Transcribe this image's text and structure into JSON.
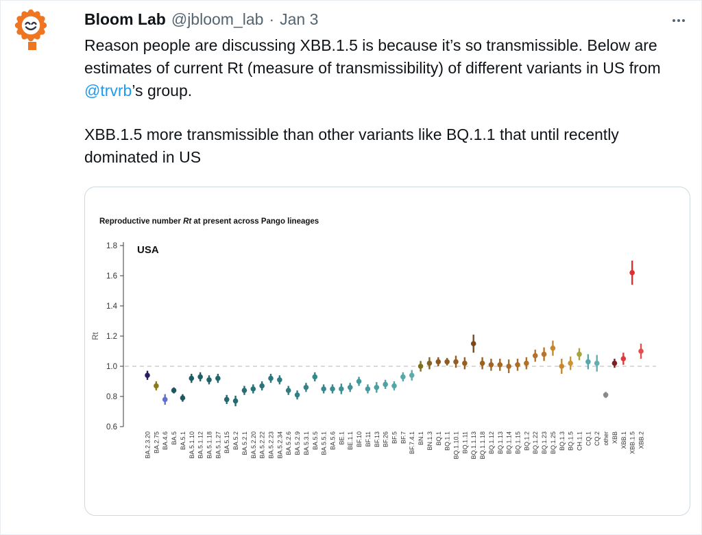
{
  "tweet": {
    "author": "Bloom Lab",
    "handle": "@jbloom_lab",
    "dot": "·",
    "date": "Jan 3",
    "body1_pre": "Reason people are discussing XBB.1.5 is because it’s so transmissible. Below are estimates of current Rt (measure of transmissibility) of different variants in US from ",
    "mention": "@trvrb",
    "body1_post": "’s group.",
    "body2": "XBB.1.5 more transmissible than other variants like BQ.1.1 that until recently dominated in US"
  },
  "icons": {
    "avatar": "bloom-lab-sun-smiley-logo",
    "more": "three-dots-horizontal"
  },
  "colors": {
    "link_blue": "#1d9bf0",
    "text_primary": "#0f1419",
    "text_secondary": "#536471",
    "card_border": "#cfd9de",
    "logo_orange": "#ee7623",
    "refline_gray": "#c4c4c4"
  },
  "chart_data": {
    "type": "scatter",
    "title": "Reproductive number Rt at present across Pango lineages",
    "title_pre": "Reproductive number ",
    "title_rt": "Rt",
    "title_post": " at present across Pango lineages",
    "region": "USA",
    "ylabel": "Rt",
    "ylim": [
      0.6,
      1.8
    ],
    "yticks": [
      0.6,
      0.8,
      1.0,
      1.2,
      1.4,
      1.6,
      1.8
    ],
    "reference_line": 1.0,
    "error_bars": true,
    "grid": false,
    "legend": false,
    "points": [
      {
        "label": "BA.2.3.20",
        "rt": 0.94,
        "lo": 0.91,
        "hi": 0.97,
        "color": "#2c1e5e"
      },
      {
        "label": "BA.2.75",
        "rt": 0.87,
        "lo": 0.84,
        "hi": 0.9,
        "color": "#8c7a1d"
      },
      {
        "label": "BA.4.6",
        "rt": 0.78,
        "lo": 0.745,
        "hi": 0.815,
        "color": "#5f6fd4"
      },
      {
        "label": "BA.5",
        "rt": 0.84,
        "lo": 0.82,
        "hi": 0.86,
        "color": "#1d565c"
      },
      {
        "label": "BA.5.1",
        "rt": 0.79,
        "lo": 0.765,
        "hi": 0.815,
        "color": "#1e595f"
      },
      {
        "label": "BA.5.1.10",
        "rt": 0.92,
        "lo": 0.89,
        "hi": 0.95,
        "color": "#1f5c62"
      },
      {
        "label": "BA.5.1.12",
        "rt": 0.93,
        "lo": 0.9,
        "hi": 0.96,
        "color": "#205f65"
      },
      {
        "label": "BA.5.1.18",
        "rt": 0.91,
        "lo": 0.88,
        "hi": 0.94,
        "color": "#216268"
      },
      {
        "label": "BA.5.1.27",
        "rt": 0.92,
        "lo": 0.89,
        "hi": 0.95,
        "color": "#22656b"
      },
      {
        "label": "BA.5.15",
        "rt": 0.78,
        "lo": 0.75,
        "hi": 0.81,
        "color": "#23686e"
      },
      {
        "label": "BA.5.2",
        "rt": 0.77,
        "lo": 0.735,
        "hi": 0.805,
        "color": "#246b71"
      },
      {
        "label": "BA.5.2.1",
        "rt": 0.84,
        "lo": 0.81,
        "hi": 0.87,
        "color": "#266e74"
      },
      {
        "label": "BA.5.2.20",
        "rt": 0.85,
        "lo": 0.82,
        "hi": 0.88,
        "color": "#277177"
      },
      {
        "label": "BA.5.2.22",
        "rt": 0.87,
        "lo": 0.84,
        "hi": 0.9,
        "color": "#29747a"
      },
      {
        "label": "BA.5.2.23",
        "rt": 0.92,
        "lo": 0.89,
        "hi": 0.95,
        "color": "#2b777d"
      },
      {
        "label": "BA.5.2.34",
        "rt": 0.91,
        "lo": 0.88,
        "hi": 0.94,
        "color": "#2d7a80"
      },
      {
        "label": "BA.5.2.6",
        "rt": 0.84,
        "lo": 0.81,
        "hi": 0.87,
        "color": "#2f7d83"
      },
      {
        "label": "BA.5.2.9",
        "rt": 0.81,
        "lo": 0.78,
        "hi": 0.84,
        "color": "#318086"
      },
      {
        "label": "BA.5.3.1",
        "rt": 0.86,
        "lo": 0.83,
        "hi": 0.89,
        "color": "#338389"
      },
      {
        "label": "BA.5.5",
        "rt": 0.93,
        "lo": 0.9,
        "hi": 0.96,
        "color": "#36868c"
      },
      {
        "label": "BA.5.5.1",
        "rt": 0.85,
        "lo": 0.82,
        "hi": 0.88,
        "color": "#38898f"
      },
      {
        "label": "BA.5.6",
        "rt": 0.85,
        "lo": 0.82,
        "hi": 0.88,
        "color": "#3b8c92"
      },
      {
        "label": "BE.1",
        "rt": 0.85,
        "lo": 0.815,
        "hi": 0.885,
        "color": "#3e9095"
      },
      {
        "label": "BE.1.1",
        "rt": 0.86,
        "lo": 0.83,
        "hi": 0.89,
        "color": "#419398"
      },
      {
        "label": "BF.10",
        "rt": 0.9,
        "lo": 0.87,
        "hi": 0.93,
        "color": "#45979b"
      },
      {
        "label": "BF.11",
        "rt": 0.85,
        "lo": 0.82,
        "hi": 0.88,
        "color": "#489a9e"
      },
      {
        "label": "BF.13",
        "rt": 0.86,
        "lo": 0.825,
        "hi": 0.895,
        "color": "#4c9ea1"
      },
      {
        "label": "BF.26",
        "rt": 0.88,
        "lo": 0.85,
        "hi": 0.91,
        "color": "#50a1a4"
      },
      {
        "label": "BF.5",
        "rt": 0.87,
        "lo": 0.84,
        "hi": 0.9,
        "color": "#54a5a7"
      },
      {
        "label": "BF.7",
        "rt": 0.93,
        "lo": 0.9,
        "hi": 0.96,
        "color": "#58a8aa"
      },
      {
        "label": "BF.7.4.1",
        "rt": 0.94,
        "lo": 0.905,
        "hi": 0.975,
        "color": "#5cacad"
      },
      {
        "label": "BN.1",
        "rt": 1.0,
        "lo": 0.965,
        "hi": 1.035,
        "color": "#7e6f1e"
      },
      {
        "label": "BN.1.3",
        "rt": 1.02,
        "lo": 0.98,
        "hi": 1.06,
        "color": "#846420"
      },
      {
        "label": "BQ.1",
        "rt": 1.03,
        "lo": 1.0,
        "hi": 1.06,
        "color": "#885a22"
      },
      {
        "label": "BQ.1.1",
        "rt": 1.03,
        "lo": 1.005,
        "hi": 1.055,
        "color": "#8d5c23"
      },
      {
        "label": "BQ.1.10.1",
        "rt": 1.03,
        "lo": 0.99,
        "hi": 1.07,
        "color": "#915e24"
      },
      {
        "label": "BQ.1.11",
        "rt": 1.02,
        "lo": 0.98,
        "hi": 1.06,
        "color": "#956025"
      },
      {
        "label": "BQ.1.1.13",
        "rt": 1.15,
        "lo": 1.09,
        "hi": 1.21,
        "color": "#7a4a1c"
      },
      {
        "label": "BQ.1.1.18",
        "rt": 1.02,
        "lo": 0.98,
        "hi": 1.06,
        "color": "#9a6326"
      },
      {
        "label": "BQ.1.12",
        "rt": 1.01,
        "lo": 0.97,
        "hi": 1.05,
        "color": "#9e6527"
      },
      {
        "label": "BQ.1.13",
        "rt": 1.01,
        "lo": 0.97,
        "hi": 1.05,
        "color": "#a36828"
      },
      {
        "label": "BQ.1.14",
        "rt": 1.0,
        "lo": 0.955,
        "hi": 1.045,
        "color": "#a76a29"
      },
      {
        "label": "BQ.1.15",
        "rt": 1.01,
        "lo": 0.97,
        "hi": 1.05,
        "color": "#ac6d2a"
      },
      {
        "label": "BQ.1.2",
        "rt": 1.02,
        "lo": 0.98,
        "hi": 1.06,
        "color": "#b0702b"
      },
      {
        "label": "BQ.1.22",
        "rt": 1.07,
        "lo": 1.03,
        "hi": 1.11,
        "color": "#b5722c"
      },
      {
        "label": "BQ.1.23",
        "rt": 1.08,
        "lo": 1.035,
        "hi": 1.125,
        "color": "#b9752d"
      },
      {
        "label": "BQ.1.25",
        "rt": 1.12,
        "lo": 1.07,
        "hi": 1.17,
        "color": "#c8862d"
      },
      {
        "label": "BQ.1.3",
        "rt": 1.0,
        "lo": 0.95,
        "hi": 1.05,
        "color": "#c28a2f"
      },
      {
        "label": "BQ.1.5",
        "rt": 1.02,
        "lo": 0.975,
        "hi": 1.065,
        "color": "#cc9433"
      },
      {
        "label": "CH.1.1",
        "rt": 1.08,
        "lo": 1.04,
        "hi": 1.12,
        "color": "#a8a43c"
      },
      {
        "label": "CQ.1",
        "rt": 1.03,
        "lo": 0.98,
        "hi": 1.08,
        "color": "#58a8aa"
      },
      {
        "label": "CQ.2",
        "rt": 1.02,
        "lo": 0.965,
        "hi": 1.075,
        "color": "#62aeb1"
      },
      {
        "label": "other",
        "rt": 0.81,
        "lo": 0.79,
        "hi": 0.83,
        "color": "#8a8a8a"
      },
      {
        "label": "XBB",
        "rt": 1.02,
        "lo": 0.99,
        "hi": 1.05,
        "color": "#7c2024"
      },
      {
        "label": "XBB.1",
        "rt": 1.05,
        "lo": 1.01,
        "hi": 1.09,
        "color": "#dc3b3b"
      },
      {
        "label": "XBB.1.5",
        "rt": 1.62,
        "lo": 1.54,
        "hi": 1.7,
        "color": "#e02f2f"
      },
      {
        "label": "XBB.2",
        "rt": 1.1,
        "lo": 1.05,
        "hi": 1.15,
        "color": "#e24e4e"
      }
    ]
  }
}
